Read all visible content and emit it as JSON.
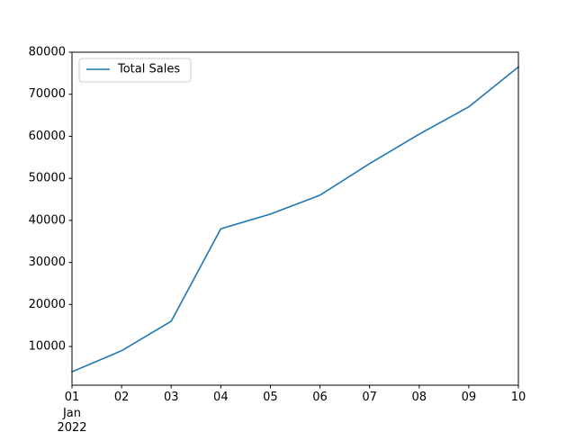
{
  "chart_data": {
    "type": "line",
    "title": "",
    "xlabel": "",
    "ylabel": "",
    "x": [
      "01",
      "02",
      "03",
      "04",
      "05",
      "06",
      "07",
      "08",
      "09",
      "10"
    ],
    "x_sublabel": [
      "Jan",
      "2022"
    ],
    "ylim": [
      800,
      80000
    ],
    "yticks": [
      10000,
      20000,
      30000,
      40000,
      50000,
      60000,
      70000,
      80000
    ],
    "grid": false,
    "legend_position": "top-left",
    "series": [
      {
        "name": "Total Sales",
        "color": "#1f77b4",
        "values": [
          4000,
          9000,
          16000,
          38000,
          41500,
          46000,
          53500,
          60500,
          67000,
          76500
        ]
      }
    ]
  }
}
